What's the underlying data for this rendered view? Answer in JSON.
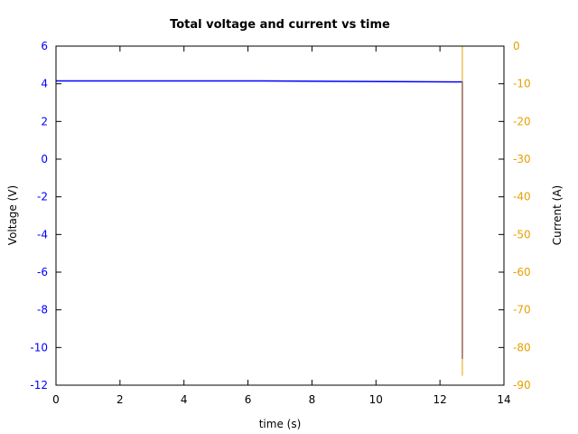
{
  "chart_data": {
    "type": "line",
    "title": "Total voltage and current vs time",
    "xlabel": "time (s)",
    "ylabel": "Voltage (V)",
    "y2label": "Current (A)",
    "xlim": [
      0,
      14
    ],
    "ylim": [
      -12,
      6
    ],
    "y2lim": [
      -90,
      0
    ],
    "x_ticks": [
      0,
      2,
      4,
      6,
      8,
      10,
      12,
      14
    ],
    "y_ticks": [
      -12,
      -10,
      -8,
      -6,
      -4,
      -2,
      0,
      2,
      4,
      6
    ],
    "y2_ticks": [
      -90,
      -80,
      -70,
      -60,
      -50,
      -40,
      -30,
      -20,
      -10,
      0
    ],
    "grid": false,
    "colors": {
      "voltage": "#0000ff",
      "current": "#e6a000",
      "frame": "#000000"
    },
    "series": [
      {
        "axis": "left",
        "color": "#0000ff",
        "x": [
          0,
          6.5,
          12.7,
          12.7
        ],
        "y": [
          4.15,
          4.15,
          4.1,
          -10.6
        ]
      },
      {
        "axis": "right",
        "color": "#e6a000",
        "x": [
          12.7,
          12.7
        ],
        "y": [
          0,
          -87.5
        ]
      }
    ]
  }
}
